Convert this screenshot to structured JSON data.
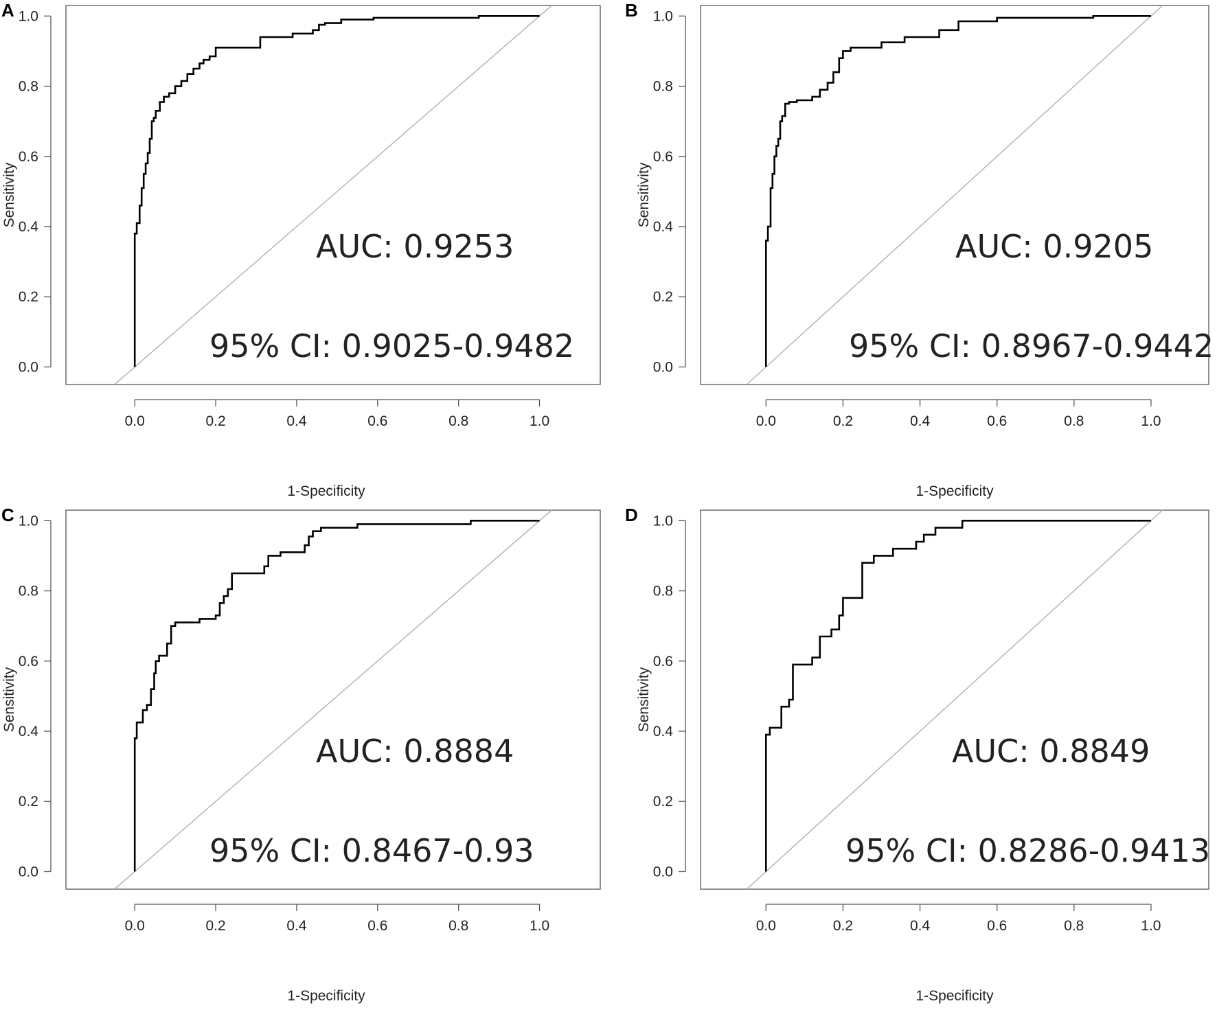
{
  "chart_data": [
    {
      "panel": "A",
      "type": "line",
      "xlabel": "1-Specificity",
      "ylabel": "Sensitivity",
      "xlim": [
        -0.17,
        1.15
      ],
      "ylim": [
        -0.05,
        1.03
      ],
      "xticks": [
        "0.0",
        "0.2",
        "0.4",
        "0.6",
        "0.8",
        "1.0"
      ],
      "yticks": [
        "0.0",
        "0.2",
        "0.4",
        "0.6",
        "0.8",
        "1.0"
      ],
      "auc_text": "AUC: 0.9253",
      "ci_text": "95% CI: 0.9025-0.9482",
      "reference_line": true,
      "series": [
        {
          "name": "ROC",
          "x": [
            0,
            0,
            0.005,
            0.005,
            0.012,
            0.012,
            0.017,
            0.017,
            0.022,
            0.022,
            0.027,
            0.027,
            0.032,
            0.032,
            0.037,
            0.037,
            0.042,
            0.042,
            0.047,
            0.047,
            0.052,
            0.052,
            0.062,
            0.062,
            0.072,
            0.072,
            0.085,
            0.085,
            0.1,
            0.1,
            0.115,
            0.115,
            0.13,
            0.13,
            0.145,
            0.145,
            0.16,
            0.16,
            0.17,
            0.17,
            0.185,
            0.185,
            0.2,
            0.2,
            0.31,
            0.31,
            0.39,
            0.39,
            0.44,
            0.44,
            0.455,
            0.455,
            0.47,
            0.47,
            0.51,
            0.51,
            0.59,
            0.59,
            0.85,
            0.85,
            1.0
          ],
          "y": [
            0,
            0.38,
            0.38,
            0.41,
            0.41,
            0.46,
            0.46,
            0.51,
            0.51,
            0.55,
            0.55,
            0.58,
            0.58,
            0.61,
            0.61,
            0.65,
            0.65,
            0.7,
            0.7,
            0.71,
            0.71,
            0.73,
            0.73,
            0.755,
            0.755,
            0.77,
            0.77,
            0.78,
            0.78,
            0.8,
            0.8,
            0.815,
            0.815,
            0.835,
            0.835,
            0.85,
            0.85,
            0.865,
            0.865,
            0.875,
            0.875,
            0.885,
            0.885,
            0.91,
            0.91,
            0.94,
            0.94,
            0.95,
            0.95,
            0.96,
            0.96,
            0.975,
            0.975,
            0.98,
            0.98,
            0.99,
            0.99,
            0.995,
            0.995,
            1.0,
            1.0
          ]
        }
      ]
    },
    {
      "panel": "B",
      "type": "line",
      "xlabel": "1-Specificity",
      "ylabel": "Sensitivity",
      "xlim": [
        -0.17,
        1.15
      ],
      "ylim": [
        -0.05,
        1.03
      ],
      "xticks": [
        "0.0",
        "0.2",
        "0.4",
        "0.6",
        "0.8",
        "1.0"
      ],
      "yticks": [
        "0.0",
        "0.2",
        "0.4",
        "0.6",
        "0.8",
        "1.0"
      ],
      "auc_text": "AUC: 0.9205",
      "ci_text": "95% CI: 0.8967-0.9442",
      "reference_line": true,
      "series": [
        {
          "name": "ROC",
          "x": [
            0,
            0,
            0.005,
            0.005,
            0.012,
            0.012,
            0.017,
            0.017,
            0.022,
            0.022,
            0.027,
            0.027,
            0.032,
            0.032,
            0.037,
            0.037,
            0.042,
            0.042,
            0.05,
            0.05,
            0.06,
            0.06,
            0.08,
            0.08,
            0.12,
            0.12,
            0.14,
            0.14,
            0.16,
            0.16,
            0.175,
            0.175,
            0.19,
            0.19,
            0.2,
            0.2,
            0.22,
            0.22,
            0.3,
            0.3,
            0.36,
            0.36,
            0.45,
            0.45,
            0.5,
            0.5,
            0.6,
            0.6,
            0.85,
            0.85,
            1.0
          ],
          "y": [
            0,
            0.36,
            0.36,
            0.4,
            0.4,
            0.51,
            0.51,
            0.55,
            0.55,
            0.6,
            0.6,
            0.63,
            0.63,
            0.65,
            0.65,
            0.7,
            0.7,
            0.715,
            0.715,
            0.75,
            0.75,
            0.755,
            0.755,
            0.76,
            0.76,
            0.77,
            0.77,
            0.79,
            0.79,
            0.81,
            0.81,
            0.84,
            0.84,
            0.88,
            0.88,
            0.9,
            0.9,
            0.91,
            0.91,
            0.925,
            0.925,
            0.94,
            0.94,
            0.96,
            0.96,
            0.985,
            0.985,
            0.995,
            0.995,
            1.0,
            1.0
          ]
        }
      ]
    },
    {
      "panel": "C",
      "type": "line",
      "xlabel": "1-Specificity",
      "ylabel": "Sensitivity",
      "xlim": [
        -0.17,
        1.15
      ],
      "ylim": [
        -0.05,
        1.03
      ],
      "xticks": [
        "0.0",
        "0.2",
        "0.4",
        "0.6",
        "0.8",
        "1.0"
      ],
      "yticks": [
        "0.0",
        "0.2",
        "0.4",
        "0.6",
        "0.8",
        "1.0"
      ],
      "auc_text": "AUC: 0.8884",
      "ci_text": "95% CI: 0.8467-0.93",
      "reference_line": true,
      "series": [
        {
          "name": "ROC",
          "x": [
            0,
            0,
            0.005,
            0.005,
            0.02,
            0.02,
            0.03,
            0.03,
            0.04,
            0.04,
            0.048,
            0.048,
            0.052,
            0.052,
            0.06,
            0.06,
            0.08,
            0.08,
            0.09,
            0.09,
            0.1,
            0.1,
            0.16,
            0.16,
            0.2,
            0.2,
            0.21,
            0.21,
            0.22,
            0.22,
            0.23,
            0.23,
            0.24,
            0.24,
            0.32,
            0.32,
            0.33,
            0.33,
            0.36,
            0.36,
            0.42,
            0.42,
            0.43,
            0.43,
            0.44,
            0.44,
            0.46,
            0.46,
            0.55,
            0.55,
            0.83,
            0.83,
            1.0
          ],
          "y": [
            0,
            0.38,
            0.38,
            0.425,
            0.425,
            0.46,
            0.46,
            0.475,
            0.475,
            0.52,
            0.52,
            0.565,
            0.565,
            0.6,
            0.6,
            0.615,
            0.615,
            0.65,
            0.65,
            0.7,
            0.7,
            0.71,
            0.71,
            0.72,
            0.72,
            0.73,
            0.73,
            0.765,
            0.765,
            0.785,
            0.785,
            0.805,
            0.805,
            0.85,
            0.85,
            0.87,
            0.87,
            0.9,
            0.9,
            0.91,
            0.91,
            0.93,
            0.93,
            0.955,
            0.955,
            0.97,
            0.97,
            0.98,
            0.98,
            0.99,
            0.99,
            1.0,
            1.0
          ]
        }
      ]
    },
    {
      "panel": "D",
      "type": "line",
      "xlabel": "1-Specificity",
      "ylabel": "Sensitivity",
      "xlim": [
        -0.17,
        1.15
      ],
      "ylim": [
        -0.05,
        1.03
      ],
      "xticks": [
        "0.0",
        "0.2",
        "0.4",
        "0.6",
        "0.8",
        "1.0"
      ],
      "yticks": [
        "0.0",
        "0.2",
        "0.4",
        "0.6",
        "0.8",
        "1.0"
      ],
      "auc_text": "AUC: 0.8849",
      "ci_text": "95% CI: 0.8286-0.9413",
      "reference_line": true,
      "series": [
        {
          "name": "ROC",
          "x": [
            0,
            0,
            0.01,
            0.01,
            0.04,
            0.04,
            0.06,
            0.06,
            0.07,
            0.07,
            0.12,
            0.12,
            0.14,
            0.14,
            0.17,
            0.17,
            0.19,
            0.19,
            0.2,
            0.2,
            0.25,
            0.25,
            0.28,
            0.28,
            0.33,
            0.33,
            0.39,
            0.39,
            0.41,
            0.41,
            0.44,
            0.44,
            0.51,
            0.51,
            1.0
          ],
          "y": [
            0,
            0.39,
            0.39,
            0.41,
            0.41,
            0.47,
            0.47,
            0.49,
            0.49,
            0.59,
            0.59,
            0.61,
            0.61,
            0.67,
            0.67,
            0.69,
            0.69,
            0.73,
            0.73,
            0.78,
            0.78,
            0.88,
            0.88,
            0.9,
            0.9,
            0.92,
            0.92,
            0.94,
            0.94,
            0.96,
            0.96,
            0.98,
            0.98,
            1.0,
            1.0
          ]
        }
      ]
    }
  ]
}
